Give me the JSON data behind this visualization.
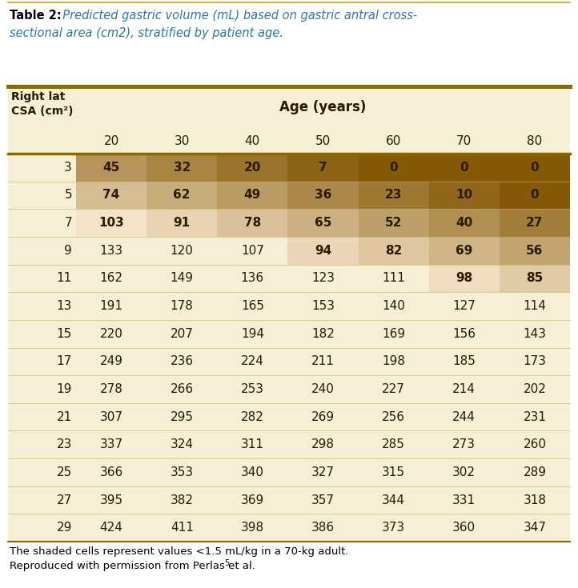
{
  "title_bold": "Table 2:",
  "title_italic": "  Predicted gastric volume (mL) based on gastric antral cross-\nsectional area (cm2), stratified by patient age.",
  "col_header": [
    "20",
    "30",
    "40",
    "50",
    "60",
    "70",
    "80"
  ],
  "row_header": [
    "3",
    "5",
    "7",
    "9",
    "11",
    "13",
    "15",
    "17",
    "19",
    "21",
    "23",
    "25",
    "27",
    "29"
  ],
  "age_label": "Age (years)",
  "row_col_label_line1": "Right lat",
  "row_col_label_line2": "CSA (cm²)",
  "table_data": [
    [
      45,
      32,
      20,
      7,
      0,
      0,
      0
    ],
    [
      74,
      62,
      49,
      36,
      23,
      10,
      0
    ],
    [
      103,
      91,
      78,
      65,
      52,
      40,
      27
    ],
    [
      133,
      120,
      107,
      94,
      82,
      69,
      56
    ],
    [
      162,
      149,
      136,
      123,
      111,
      98,
      85
    ],
    [
      191,
      178,
      165,
      153,
      140,
      127,
      114
    ],
    [
      220,
      207,
      194,
      182,
      169,
      156,
      143
    ],
    [
      249,
      236,
      224,
      211,
      198,
      185,
      173
    ],
    [
      278,
      266,
      253,
      240,
      227,
      214,
      202
    ],
    [
      307,
      295,
      282,
      269,
      256,
      244,
      231
    ],
    [
      337,
      324,
      311,
      298,
      285,
      273,
      260
    ],
    [
      366,
      353,
      340,
      327,
      315,
      302,
      289
    ],
    [
      395,
      382,
      369,
      357,
      344,
      331,
      318
    ],
    [
      424,
      411,
      398,
      386,
      373,
      360,
      347
    ]
  ],
  "threshold": 105,
  "light_color": [
    0.97,
    0.9,
    0.8
  ],
  "dark_color": [
    0.52,
    0.35,
    0.03
  ],
  "bg_color": "#f5f0d5",
  "border_color_thick": "#8a6a00",
  "border_color_thin": "#c8b060",
  "text_color": "#2a1a00",
  "footer_text_line1": "The shaded cells represent values <1.5 mL/kg in a 70-kg adult.",
  "footer_text_line2": "Reproduced with permission from Perlas et al.",
  "footer_superscript": "5",
  "title_color": "#2878a0",
  "fig_bg": "#ffffff",
  "title_top_line_color": "#c8a020",
  "title_bottom_line_color": "#8a6a00"
}
